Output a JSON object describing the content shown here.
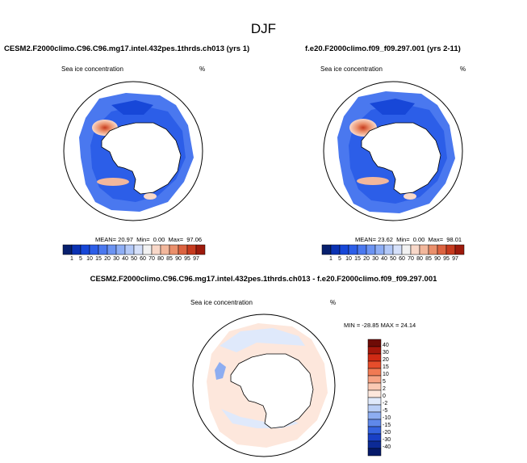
{
  "figure": {
    "season_title": "DJF",
    "variable_label": "Sea ice concentration",
    "units_label": "%"
  },
  "panels": [
    {
      "case_title": "CESM2.F2000climo.C96.C96.mg17.intel.432pes.1thrds.ch013 (yrs 1)",
      "mean_label": "MEAN=",
      "mean": "20.97",
      "min_label": "Min=",
      "min": "0.00",
      "max_label": "Max=",
      "max": "97.06"
    },
    {
      "case_title": "f.e20.F2000climo.f09_f09.297.001 (yrs 2-11)",
      "mean_label": "MEAN=",
      "mean": "23.62",
      "min_label": "Min=",
      "min": "0.00",
      "max_label": "Max=",
      "max": "98.01"
    }
  ],
  "colorbar": {
    "levels": [
      "1",
      "5",
      "10",
      "15",
      "20",
      "30",
      "40",
      "50",
      "60",
      "70",
      "80",
      "85",
      "90",
      "95",
      "97"
    ],
    "colors": [
      "#08206e",
      "#0b32b3",
      "#1747d8",
      "#2c5ee8",
      "#4a78ef",
      "#6b93f2",
      "#8eaef5",
      "#b3c9f8",
      "#d6e1fa",
      "#f2f2f2",
      "#f8d8c9",
      "#f2b79c",
      "#ea8f6b",
      "#dc6340",
      "#c63a1e",
      "#9d1a0c"
    ]
  },
  "difference": {
    "title": "CESM2.F2000climo.C96.C96.mg17.intel.432pes.1thrds.ch013 - f.e20.F2000climo.f09_f09.297.001",
    "min_max_label": "MIN = -28.85 MAX =  24.14",
    "levels": [
      "40",
      "30",
      "20",
      "15",
      "10",
      "5",
      "2",
      "0",
      "-2",
      "-5",
      "-10",
      "-15",
      "-20",
      "-30",
      "-40"
    ],
    "colors": [
      "#6e0b06",
      "#a5170b",
      "#d02a14",
      "#e64d2b",
      "#f07a54",
      "#f6a384",
      "#fac9b3",
      "#fde7dc",
      "#dfe9fb",
      "#b9cef6",
      "#8dadf1",
      "#5f88ea",
      "#3563df",
      "#1940c6",
      "#0c2a96",
      "#061a6a"
    ]
  }
}
